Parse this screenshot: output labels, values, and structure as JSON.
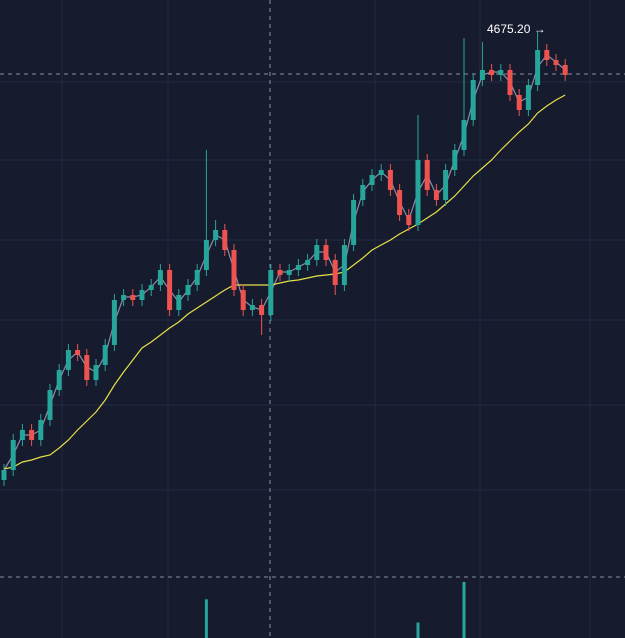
{
  "chart_data": {
    "type": "candlestick",
    "annotation": "4675.20 →",
    "ylim": [
      4132,
      4707
    ],
    "volume_lim": [
      0,
      6000
    ],
    "up_color": "#26a69a",
    "down_color": "#ef5350",
    "open": [
      4227,
      4237,
      4267,
      4277,
      4267,
      4287,
      4317,
      4337,
      4357,
      4352,
      4327,
      4342,
      4362,
      4407,
      4412,
      4407,
      4417,
      4422,
      4437,
      4397,
      4412,
      4422,
      4437,
      4467,
      4477,
      4457,
      4417,
      4397,
      4402,
      4392,
      4437,
      4432,
      4437,
      4442,
      4447,
      4462,
      4447,
      4422,
      4462,
      4507,
      4522,
      4532,
      4537,
      4517,
      4492,
      4482,
      4547,
      4517,
      4507,
      4537,
      4557,
      4587,
      4627,
      4637,
      4632,
      4637,
      4612,
      4597,
      4622,
      4657,
      4647,
      4642
    ],
    "high": [
      4243,
      4273,
      4283,
      4283,
      4293,
      4323,
      4343,
      4363,
      4363,
      4358,
      4348,
      4368,
      4413,
      4418,
      4418,
      4423,
      4428,
      4443,
      4443,
      4418,
      4428,
      4443,
      4557,
      4487,
      4483,
      4463,
      4423,
      4408,
      4408,
      4443,
      4443,
      4443,
      4448,
      4453,
      4468,
      4468,
      4453,
      4468,
      4513,
      4528,
      4538,
      4543,
      4543,
      4523,
      4498,
      4592,
      4553,
      4523,
      4543,
      4563,
      4669,
      4633,
      4665,
      4643,
      4643,
      4643,
      4618,
      4628,
      4675.2,
      4663,
      4653,
      4648
    ],
    "low": [
      4221,
      4231,
      4261,
      4261,
      4261,
      4281,
      4311,
      4331,
      4346,
      4321,
      4321,
      4336,
      4356,
      4401,
      4401,
      4401,
      4411,
      4416,
      4391,
      4391,
      4406,
      4416,
      4431,
      4461,
      4451,
      4411,
      4391,
      4391,
      4372,
      4386,
      4426,
      4426,
      4431,
      4436,
      4441,
      4441,
      4412,
      4416,
      4456,
      4501,
      4516,
      4526,
      4511,
      4486,
      4476,
      4476,
      4511,
      4501,
      4501,
      4531,
      4551,
      4581,
      4621,
      4626,
      4626,
      4606,
      4591,
      4591,
      4616,
      4641,
      4636,
      4626
    ],
    "close": [
      4237,
      4267,
      4277,
      4267,
      4287,
      4317,
      4337,
      4357,
      4352,
      4327,
      4342,
      4362,
      4407,
      4412,
      4407,
      4417,
      4422,
      4437,
      4397,
      4412,
      4422,
      4437,
      4467,
      4477,
      4457,
      4417,
      4397,
      4402,
      4392,
      4437,
      4432,
      4437,
      4442,
      4447,
      4462,
      4447,
      4422,
      4462,
      4507,
      4522,
      4532,
      4537,
      4517,
      4492,
      4482,
      4547,
      4517,
      4507,
      4537,
      4557,
      4587,
      4627,
      4637,
      4632,
      4637,
      4612,
      4597,
      4622,
      4657,
      4647,
      4642,
      4632
    ],
    "series": [
      {
        "color": "#8a8fa8",
        "values": [
          4237,
          4252,
          4272,
          4272,
          4277,
          4302,
          4327,
          4347,
          4355,
          4340,
          4335,
          4352,
          4385,
          4410,
          4410,
          4412,
          4420,
          4430,
          4417,
          4405,
          4417,
          4430,
          4452,
          4472,
          4467,
          4437,
          4407,
          4400,
          4397,
          4415,
          4435,
          4435,
          4440,
          4445,
          4455,
          4455,
          4435,
          4442,
          4485,
          4515,
          4527,
          4535,
          4527,
          4505,
          4487,
          4515,
          4532,
          4512,
          4522,
          4547,
          4572,
          4607,
          4632,
          4635,
          4635,
          4625,
          4605,
          4610,
          4640,
          4652,
          4645,
          4637
        ]
      },
      {
        "color": "#e6e04a",
        "values": [
          4238,
          4240,
          4245,
          4247,
          4250,
          4252,
          4259,
          4267,
          4277,
          4286,
          4295,
          4307,
          4322,
          4335,
          4347,
          4359,
          4365,
          4372,
          4379,
          4385,
          4393,
          4399,
          4405,
          4411,
          4417,
          4422,
          4422,
          4422,
          4422,
          4422,
          4424,
          4426,
          4427,
          4429,
          4431,
          4432,
          4433,
          4435,
          4442,
          4449,
          4457,
          4462,
          4467,
          4473,
          4478,
          4483,
          4489,
          4495,
          4503,
          4511,
          4521,
          4531,
          4539,
          4547,
          4557,
          4566,
          4575,
          4583,
          4594,
          4601,
          4607,
          4612
        ]
      }
    ],
    "volume": [
      null,
      null,
      null,
      null,
      null,
      null,
      null,
      null,
      null,
      null,
      null,
      null,
      null,
      null,
      null,
      null,
      null,
      null,
      null,
      null,
      null,
      null,
      4000,
      null,
      null,
      null,
      null,
      null,
      null,
      null,
      null,
      null,
      null,
      null,
      null,
      null,
      null,
      null,
      null,
      null,
      null,
      null,
      null,
      null,
      null,
      1600,
      null,
      null,
      null,
      null,
      5800,
      null,
      null,
      null,
      null,
      null,
      null,
      null,
      null,
      null,
      null,
      null
    ]
  }
}
